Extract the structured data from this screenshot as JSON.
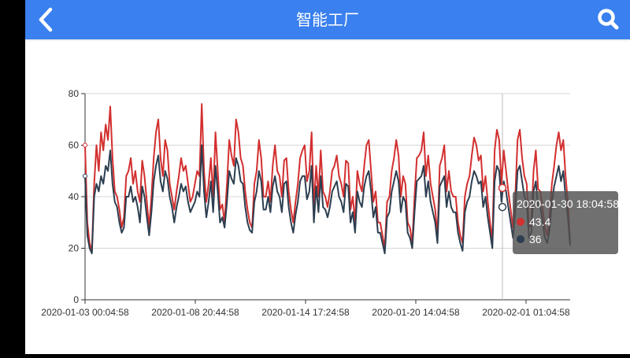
{
  "header": {
    "title": "智能工厂",
    "back_icon": "chevron-left-icon",
    "search_icon": "search-icon",
    "color": "#3a80ee"
  },
  "tooltip": {
    "time": "2020-01-30 18:04:58",
    "series_a_value": "43.4",
    "series_b_value": "36"
  },
  "chart_data": {
    "type": "line",
    "title": "",
    "xlabel": "",
    "ylabel": "",
    "ylim": [
      0,
      80
    ],
    "y_ticks": [
      "0",
      "20",
      "40",
      "60",
      "80"
    ],
    "x_tick_labels": [
      "2020-01-03 00:04:58",
      "2020-01-08 20:44:58",
      "2020-01-14 17:24:58",
      "2020-01-20 14:04:58",
      "2020-02-01 01:04:58"
    ],
    "grid": {
      "horizontal": true,
      "vertical": false
    },
    "legend": "none",
    "crosshair": {
      "time": "2020-01-30 18:04:58"
    },
    "series": [
      {
        "name": "series-red",
        "color": "#d32f2f",
        "values": [
          60,
          30,
          22,
          19,
          45,
          60,
          50,
          65,
          58,
          68,
          62,
          75,
          55,
          42,
          40,
          35,
          28,
          32,
          48,
          50,
          55,
          45,
          50,
          42,
          38,
          54,
          48,
          38,
          28,
          40,
          55,
          65,
          70,
          55,
          48,
          62,
          58,
          45,
          40,
          35,
          42,
          48,
          55,
          50,
          52,
          45,
          38,
          40,
          45,
          50,
          48,
          76,
          50,
          38,
          45,
          55,
          40,
          65,
          50,
          35,
          37,
          30,
          45,
          62,
          56,
          52,
          70,
          65,
          55,
          52,
          42,
          35,
          30,
          28,
          45,
          50,
          62,
          55,
          40,
          40,
          46,
          38,
          52,
          60,
          50,
          48,
          40,
          54,
          55,
          42,
          35,
          30,
          38,
          45,
          55,
          58,
          60,
          46,
          50,
          65,
          36,
          52,
          40,
          58,
          42,
          40,
          36,
          42,
          50,
          52,
          56,
          48,
          45,
          40,
          54,
          53,
          35,
          40,
          30,
          50,
          45,
          42,
          52,
          60,
          62,
          50,
          38,
          42,
          30,
          30,
          25,
          20,
          38,
          40,
          50,
          55,
          62,
          56,
          40,
          48,
          45,
          30,
          28,
          22,
          40,
          55,
          56,
          58,
          65,
          48,
          56,
          45,
          40,
          35,
          25,
          52,
          55,
          60,
          42,
          50,
          42,
          40,
          40,
          30,
          25,
          22,
          40,
          45,
          48,
          56,
          63,
          60,
          54,
          56,
          42,
          48,
          38,
          30,
          23,
          58,
          66,
          62,
          45,
          58,
          50,
          42,
          35,
          28,
          40,
          62,
          66,
          55,
          48,
          45,
          28,
          30,
          50,
          58,
          43,
          42,
          35,
          28,
          25,
          32,
          45,
          52,
          60,
          65,
          58,
          62,
          48,
          38,
          22
        ]
      },
      {
        "name": "series-blue",
        "color": "#2c3e50",
        "values": [
          48,
          25,
          20,
          18,
          40,
          45,
          42,
          48,
          45,
          52,
          50,
          58,
          45,
          38,
          36,
          30,
          26,
          28,
          40,
          40,
          44,
          38,
          40,
          36,
          30,
          44,
          40,
          32,
          25,
          34,
          46,
          52,
          56,
          46,
          42,
          50,
          47,
          40,
          36,
          30,
          36,
          40,
          45,
          42,
          44,
          38,
          34,
          36,
          38,
          42,
          40,
          60,
          42,
          32,
          38,
          46,
          34,
          52,
          42,
          30,
          32,
          28,
          38,
          50,
          47,
          45,
          55,
          52,
          46,
          45,
          36,
          30,
          27,
          26,
          38,
          42,
          50,
          46,
          35,
          35,
          40,
          34,
          44,
          48,
          42,
          40,
          34,
          45,
          46,
          36,
          30,
          26,
          33,
          38,
          46,
          48,
          48,
          39,
          42,
          52,
          30,
          44,
          34,
          48,
          36,
          35,
          32,
          36,
          42,
          44,
          46,
          40,
          38,
          34,
          45,
          44,
          30,
          34,
          26,
          42,
          38,
          36,
          44,
          48,
          50,
          42,
          32,
          36,
          26,
          26,
          22,
          18,
          32,
          34,
          42,
          46,
          50,
          46,
          34,
          40,
          38,
          26,
          24,
          20,
          34,
          46,
          47,
          48,
          52,
          40,
          46,
          38,
          34,
          30,
          22,
          44,
          46,
          48,
          36,
          42,
          36,
          34,
          34,
          26,
          22,
          19,
          34,
          38,
          40,
          46,
          50,
          48,
          45,
          46,
          36,
          40,
          32,
          26,
          20,
          46,
          52,
          50,
          38,
          46,
          42,
          36,
          30,
          24,
          34,
          50,
          52,
          46,
          40,
          38,
          24,
          26,
          42,
          46,
          36,
          36,
          30,
          24,
          22,
          27,
          38,
          44,
          48,
          52,
          46,
          50,
          40,
          32,
          21
        ]
      }
    ]
  }
}
